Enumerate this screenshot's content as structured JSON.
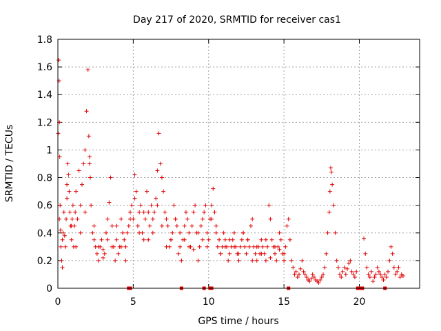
{
  "chart_data": {
    "type": "scatter",
    "title": "Day 217 of 2020, SRMTID for receiver cas1",
    "xlabel": "GPS time / hours",
    "ylabel": "SRMTID / TECUs",
    "xlim": [
      0,
      24
    ],
    "ylim": [
      0,
      1.8
    ],
    "xticks": [
      0,
      5,
      10,
      15,
      20
    ],
    "xtick_labels": [
      "0",
      "5",
      "10",
      "15",
      "20"
    ],
    "yticks": [
      0,
      0.2,
      0.4,
      0.6,
      0.8,
      1,
      1.2,
      1.4,
      1.6,
      1.8
    ],
    "ytick_labels": [
      "0",
      "0.2",
      "0.4",
      "0.6",
      "0.8",
      "1",
      "1.2",
      "1.4",
      "1.6",
      "1.8"
    ],
    "grid": true,
    "color": "#e00000",
    "marker": "plus",
    "series": [
      {
        "name": "SRMTID",
        "x": [
          0.02,
          0.05,
          0.08,
          0.1,
          0.12,
          0.15,
          0.18,
          0.2,
          0.25,
          0.3,
          0.35,
          0.4,
          0.45,
          0.5,
          0.55,
          0.6,
          0.65,
          0.7,
          0.75,
          0.8,
          0.85,
          0.9,
          0.95,
          1.0,
          1.05,
          1.1,
          1.15,
          1.2,
          1.3,
          1.4,
          1.5,
          1.6,
          1.7,
          1.8,
          1.9,
          2.0,
          2.05,
          2.1,
          2.15,
          2.2,
          2.3,
          2.4,
          2.5,
          2.6,
          2.7,
          2.8,
          2.9,
          3.0,
          3.1,
          3.2,
          3.3,
          3.4,
          3.5,
          3.6,
          3.7,
          3.8,
          3.9,
          4.0,
          4.1,
          4.2,
          4.3,
          4.4,
          4.5,
          4.6,
          4.7,
          4.8,
          4.9,
          5.0,
          5.1,
          5.2,
          5.3,
          5.4,
          5.5,
          5.6,
          5.7,
          5.8,
          5.9,
          6.0,
          6.1,
          6.2,
          6.3,
          6.4,
          6.5,
          6.6,
          6.7,
          6.8,
          6.9,
          7.0,
          7.1,
          7.2,
          7.3,
          7.4,
          7.5,
          7.6,
          7.7,
          7.8,
          7.9,
          8.0,
          8.1,
          8.2,
          8.3,
          8.4,
          8.5,
          8.6,
          8.7,
          8.8,
          8.9,
          9.0,
          9.1,
          9.2,
          9.3,
          9.4,
          9.5,
          9.6,
          9.7,
          9.8,
          9.9,
          10.0,
          10.1,
          10.2,
          10.3,
          10.4,
          10.5,
          10.6,
          10.7,
          10.8,
          10.9,
          11.0,
          11.1,
          11.2,
          11.3,
          11.4,
          11.5,
          11.6,
          11.7,
          11.8,
          11.9,
          12.0,
          12.1,
          12.2,
          12.3,
          12.4,
          12.5,
          12.6,
          12.7,
          12.8,
          12.9,
          13.0,
          13.1,
          13.2,
          13.3,
          13.4,
          13.5,
          13.6,
          13.7,
          13.8,
          13.9,
          14.0,
          14.1,
          14.2,
          14.3,
          14.4,
          14.5,
          14.6,
          14.7,
          14.8,
          14.9,
          15.0,
          15.1,
          15.2,
          15.3,
          15.4,
          15.5,
          15.6,
          15.7,
          15.8,
          15.9,
          16.0,
          16.1,
          16.2,
          16.3,
          16.4,
          16.5,
          16.6,
          16.7,
          16.8,
          16.9,
          17.0,
          17.1,
          17.2,
          17.3,
          17.4,
          17.5,
          17.6,
          17.7,
          17.8,
          17.9,
          18.0,
          18.05,
          18.1,
          18.15,
          18.2,
          18.3,
          18.4,
          18.5,
          18.6,
          18.7,
          18.8,
          18.9,
          19.0,
          19.1,
          19.2,
          19.3,
          19.4,
          19.5,
          19.6,
          19.7,
          19.8,
          20.3,
          20.4,
          20.5,
          20.6,
          20.7,
          20.8,
          20.9,
          21.0,
          21.1,
          21.2,
          21.3,
          21.4,
          21.5,
          21.6,
          21.7,
          21.8,
          21.9,
          22.0,
          22.1,
          22.2,
          22.3,
          22.4,
          22.5,
          22.6,
          22.7,
          22.8,
          22.9,
          0.1,
          0.3,
          0.6,
          0.9,
          1.2,
          1.5,
          1.8,
          2.1,
          2.4,
          2.7,
          3.0,
          3.3,
          3.6,
          3.9,
          4.2,
          4.5,
          4.8,
          5.1,
          5.4,
          5.7,
          6.0,
          6.3,
          6.6,
          6.9,
          7.2,
          7.5,
          7.8,
          8.1,
          8.4,
          8.7,
          9.0,
          9.3,
          9.6,
          9.9,
          10.2,
          10.5,
          10.8,
          11.1,
          11.4,
          11.7,
          12.0,
          12.3,
          12.6,
          12.9,
          13.2,
          13.5,
          13.8,
          14.1,
          14.4,
          14.7,
          15.0
        ],
        "y": [
          1.12,
          1.65,
          1.5,
          1.2,
          0.95,
          0.6,
          0.42,
          0.3,
          0.2,
          0.15,
          0.4,
          0.55,
          0.38,
          0.3,
          0.5,
          0.75,
          0.9,
          0.82,
          0.7,
          0.55,
          0.45,
          0.35,
          0.5,
          0.6,
          0.3,
          0.45,
          0.55,
          0.7,
          0.5,
          0.85,
          0.6,
          0.75,
          0.9,
          1.0,
          1.28,
          1.58,
          1.1,
          0.95,
          0.8,
          0.6,
          0.4,
          0.35,
          0.3,
          0.25,
          0.2,
          0.3,
          0.35,
          0.28,
          0.25,
          0.4,
          0.5,
          0.62,
          0.8,
          0.45,
          0.3,
          0.2,
          0.35,
          0.25,
          0.3,
          0.5,
          0.4,
          0.35,
          0.3,
          0.4,
          0.45,
          0.55,
          0.6,
          0.5,
          0.82,
          0.7,
          0.45,
          0.55,
          0.6,
          0.4,
          0.35,
          0.5,
          0.7,
          0.55,
          0.45,
          0.6,
          0.4,
          0.55,
          0.65,
          0.85,
          1.12,
          0.9,
          0.8,
          0.7,
          0.55,
          0.5,
          0.45,
          0.3,
          0.35,
          0.4,
          0.6,
          0.5,
          0.45,
          0.25,
          0.3,
          0.2,
          0.35,
          0.45,
          0.55,
          0.5,
          0.4,
          0.3,
          0.45,
          0.55,
          0.6,
          0.4,
          0.2,
          0.3,
          0.45,
          0.5,
          0.55,
          0.6,
          0.4,
          0.35,
          0.5,
          0.6,
          0.72,
          0.55,
          0.4,
          0.3,
          0.35,
          0.25,
          0.3,
          0.4,
          0.35,
          0.3,
          0.2,
          0.25,
          0.3,
          0.35,
          0.4,
          0.3,
          0.25,
          0.2,
          0.3,
          0.35,
          0.4,
          0.3,
          0.25,
          0.35,
          0.3,
          0.45,
          0.5,
          0.3,
          0.25,
          0.2,
          0.3,
          0.25,
          0.35,
          0.3,
          0.25,
          0.2,
          0.3,
          0.6,
          0.5,
          0.35,
          0.3,
          0.25,
          0.2,
          0.3,
          0.4,
          0.35,
          0.25,
          0.2,
          0.3,
          0.45,
          0.5,
          0.35,
          0.2,
          0.15,
          0.1,
          0.12,
          0.08,
          0.1,
          0.14,
          0.2,
          0.12,
          0.1,
          0.08,
          0.06,
          0.05,
          0.07,
          0.1,
          0.08,
          0.06,
          0.05,
          0.04,
          0.06,
          0.08,
          0.1,
          0.15,
          0.25,
          0.4,
          0.55,
          0.7,
          0.87,
          0.84,
          0.75,
          0.6,
          0.4,
          0.2,
          0.15,
          0.1,
          0.08,
          0.12,
          0.15,
          0.1,
          0.14,
          0.18,
          0.2,
          0.12,
          0.1,
          0.08,
          0.12,
          0.36,
          0.25,
          0.15,
          0.1,
          0.08,
          0.12,
          0.05,
          0.08,
          0.1,
          0.15,
          0.12,
          0.1,
          0.08,
          0.06,
          0.1,
          0.08,
          0.12,
          0.2,
          0.3,
          0.25,
          0.15,
          0.1,
          0.12,
          0.15,
          0.08,
          0.1,
          0.09,
          0.5,
          0.35,
          0.65,
          0.45,
          0.3,
          0.4,
          0.55,
          0.9,
          0.45,
          0.3,
          0.22,
          0.35,
          0.3,
          0.45,
          0.3,
          0.2,
          0.5,
          0.65,
          0.4,
          0.55,
          0.35,
          0.5,
          0.6,
          0.45,
          0.3,
          0.35,
          0.5,
          0.4,
          0.35,
          0.3,
          0.28,
          0.4,
          0.35,
          0.3,
          0.5,
          0.45,
          0.25,
          0.3,
          0.35,
          0.3,
          0.25,
          0.4,
          0.35,
          0.2,
          0.3,
          0.25,
          0.35,
          0.22,
          0.3,
          0.28,
          0.25
        ]
      }
    ],
    "gap_markers_x": [
      4.7,
      4.8,
      8.2,
      9.7,
      10.1,
      10.2,
      15.3,
      19.9,
      20.0,
      20.1,
      20.2,
      21.7
    ]
  }
}
